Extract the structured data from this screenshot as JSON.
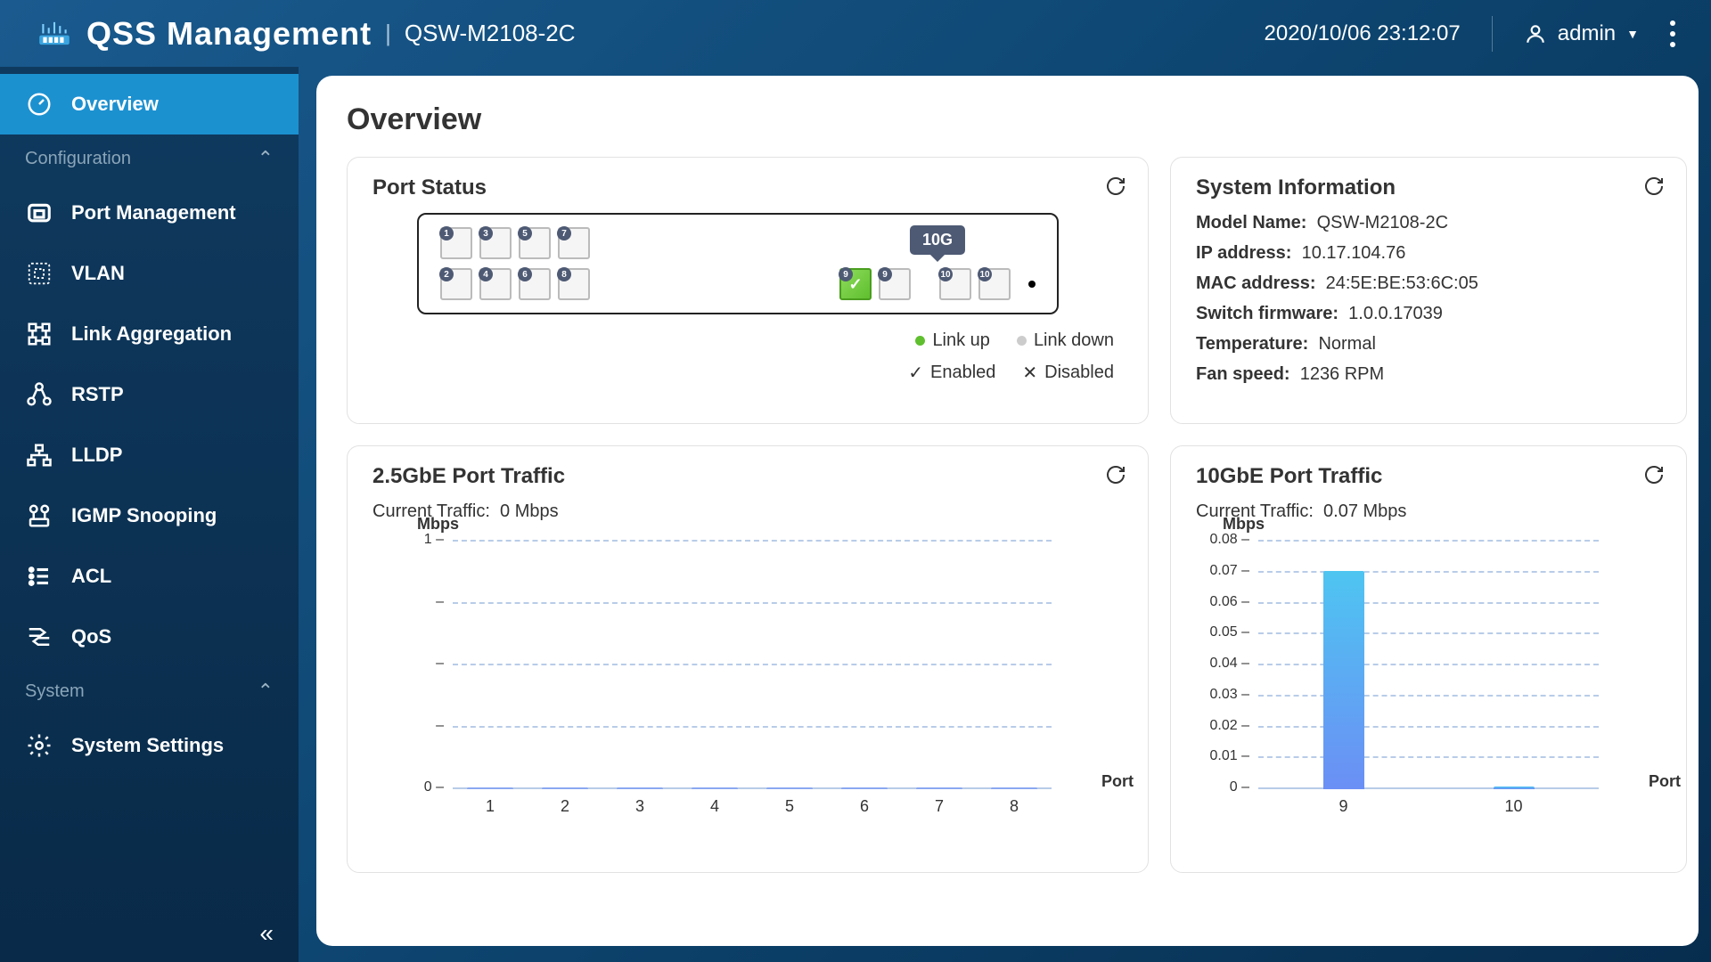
{
  "header": {
    "app_title": "QSS Management",
    "model": "QSW-M2108-2C",
    "datetime": "2020/10/06 23:12:07",
    "username": "admin"
  },
  "sidebar": {
    "items": [
      {
        "label": "Overview",
        "active": true
      },
      {
        "label": "Port Management"
      },
      {
        "label": "VLAN"
      },
      {
        "label": "Link Aggregation"
      },
      {
        "label": "RSTP"
      },
      {
        "label": "LLDP"
      },
      {
        "label": "IGMP Snooping"
      },
      {
        "label": "ACL"
      },
      {
        "label": "QoS"
      },
      {
        "label": "System Settings"
      }
    ],
    "section_config": "Configuration",
    "section_system": "System"
  },
  "page": {
    "title": "Overview"
  },
  "port_status": {
    "title": "Port Status",
    "speed_badge": "10G",
    "top_row": [
      1,
      3,
      5,
      7
    ],
    "bottom_row": [
      2,
      4,
      6,
      8
    ],
    "sfp_pair1": [
      9,
      9
    ],
    "sfp_pair2": [
      10,
      10
    ],
    "sfp_up_index": 0,
    "legend": {
      "link_up": "Link up",
      "link_down": "Link down",
      "enabled": "Enabled",
      "disabled": "Disabled"
    }
  },
  "system_info": {
    "title": "System Information",
    "rows": [
      {
        "label": "Model Name:",
        "value": "QSW-M2108-2C"
      },
      {
        "label": "IP address:",
        "value": "10.17.104.76"
      },
      {
        "label": "MAC address:",
        "value": "24:5E:BE:53:6C:05"
      },
      {
        "label": "Switch firmware:",
        "value": "1.0.0.17039"
      },
      {
        "label": "Temperature:",
        "value": "Normal"
      },
      {
        "label": "Fan speed:",
        "value": "1236 RPM"
      }
    ]
  },
  "chart_2g": {
    "title": "2.5GbE Port Traffic",
    "current_label": "Current Traffic:",
    "current_value": "0 Mbps",
    "y_unit": "Mbps",
    "x_unit": "Port",
    "y_ticks": [
      "1",
      "",
      "",
      "",
      "0"
    ],
    "x_ticks": [
      "1",
      "2",
      "3",
      "4",
      "5",
      "6",
      "7",
      "8"
    ],
    "values": [
      0.005,
      0.005,
      0.005,
      0.005,
      0.005,
      0.005,
      0.005,
      0.005
    ],
    "ymax": 1,
    "bar_gradient_top": "#4ec5f1",
    "bar_gradient_bottom": "#6b8ff5",
    "grid_color": "#b8cce8"
  },
  "chart_10g": {
    "title": "10GbE Port Traffic",
    "current_label": "Current Traffic:",
    "current_value": "0.07 Mbps",
    "y_unit": "Mbps",
    "x_unit": "Port",
    "y_ticks": [
      "0.08",
      "0.07",
      "0.06",
      "0.05",
      "0.04",
      "0.03",
      "0.02",
      "0.01",
      "0"
    ],
    "x_ticks": [
      "9",
      "10"
    ],
    "values": [
      0.07,
      0.001
    ],
    "ymax": 0.08,
    "bar_gradient_top": "#4ec5f1",
    "bar_gradient_bottom": "#6b8ff5",
    "grid_color": "#b8cce8"
  },
  "colors": {
    "accent": "#1c91d0",
    "link_up": "#5fbf2e",
    "link_down": "#cccccc",
    "card_border": "#e2e2e2"
  }
}
